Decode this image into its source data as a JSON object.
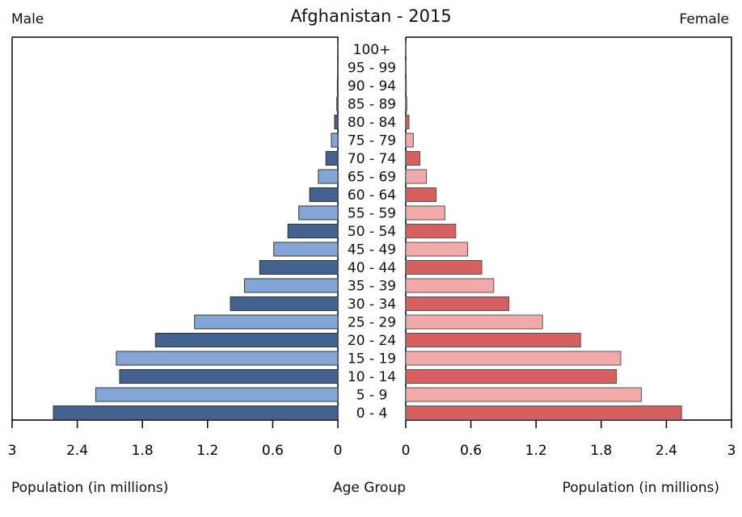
{
  "chart_data": {
    "type": "bar",
    "subtype": "population-pyramid",
    "title": "Afghanistan - 2015",
    "left_label": "Male",
    "right_label": "Female",
    "xlabel_left": "Population (in millions)",
    "xlabel_center": "Age Group",
    "xlabel_right": "Population (in millions)",
    "xlim": [
      0,
      3
    ],
    "ticks": [
      "0",
      "0.6",
      "1.2",
      "1.8",
      "2.4",
      "3"
    ],
    "tick_values": [
      0,
      0.6,
      1.2,
      1.8,
      2.4,
      3
    ],
    "grid": false,
    "categories": [
      "0 - 4",
      "5 - 9",
      "10 - 14",
      "15 - 19",
      "20 - 24",
      "25 - 29",
      "30 - 34",
      "35 - 39",
      "40 - 44",
      "45 - 49",
      "50 - 54",
      "55 - 59",
      "60 - 64",
      "65 - 69",
      "70 - 74",
      "75 - 79",
      "80 - 84",
      "85 - 89",
      "90 - 94",
      "95 - 99",
      "100+"
    ],
    "series": [
      {
        "name": "Male",
        "values": [
          2.62,
          2.23,
          2.01,
          2.04,
          1.68,
          1.32,
          0.99,
          0.86,
          0.72,
          0.59,
          0.46,
          0.36,
          0.26,
          0.18,
          0.11,
          0.06,
          0.03,
          0.01,
          0.005,
          0.002,
          0.001
        ]
      },
      {
        "name": "Female",
        "values": [
          2.54,
          2.17,
          1.94,
          1.98,
          1.61,
          1.26,
          0.95,
          0.81,
          0.7,
          0.57,
          0.46,
          0.36,
          0.28,
          0.19,
          0.13,
          0.07,
          0.03,
          0.01,
          0.005,
          0.002,
          0.001
        ]
      }
    ],
    "colors": {
      "male_dark": "#43628f",
      "male_light": "#84a6d6",
      "female_dark": "#d4605f",
      "female_light": "#f2a9a9"
    }
  }
}
